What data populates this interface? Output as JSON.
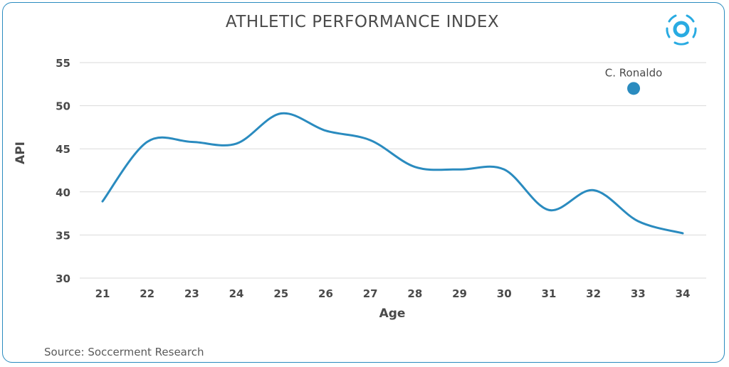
{
  "title": "ATHLETIC PERFORMANCE INDEX",
  "source": "Source: Soccerment Research",
  "colors": {
    "line": "#2a8bbf",
    "grid": "#d9d9d9",
    "text": "#4a4a4a",
    "border": "#2a8bbf"
  },
  "logo_icon": "soccerment-logo-icon",
  "chart_data": {
    "type": "line",
    "xlabel": "Age",
    "ylabel": "API",
    "ylim": [
      30,
      55
    ],
    "xlim": [
      21,
      34
    ],
    "y_ticks": [
      30,
      35,
      40,
      45,
      50,
      55
    ],
    "x_ticks": [
      21,
      22,
      23,
      24,
      25,
      26,
      27,
      28,
      29,
      30,
      31,
      32,
      33,
      34
    ],
    "grid": true,
    "series": [
      {
        "x": [
          21,
          22,
          23,
          24,
          25,
          26,
          27,
          28,
          29,
          30,
          31,
          32,
          33,
          34
        ],
        "values": [
          38.9,
          45.8,
          45.8,
          45.6,
          49.1,
          47.1,
          46.0,
          42.9,
          42.6,
          42.6,
          37.9,
          40.2,
          36.6,
          35.2
        ]
      }
    ],
    "annotations": [
      {
        "label": "C. Ronaldo",
        "x": 32.9,
        "y": 52.0
      }
    ]
  }
}
